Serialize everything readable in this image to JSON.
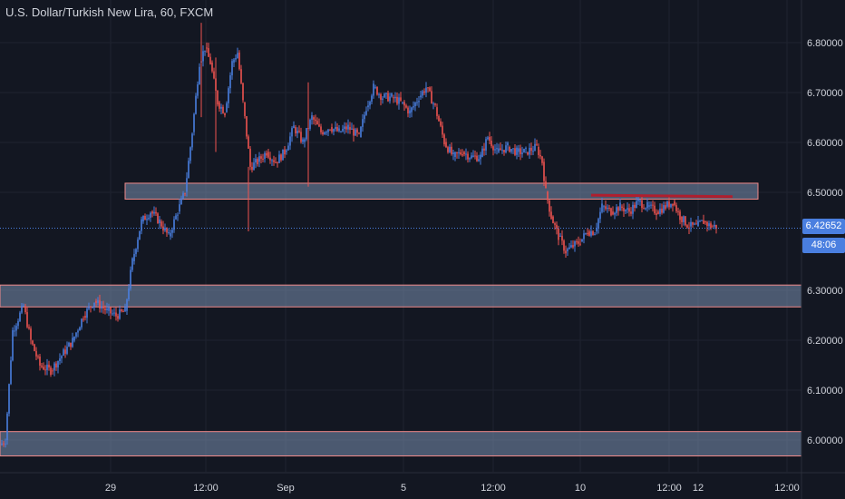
{
  "chart_data": {
    "type": "candlestick",
    "title": "U.S. Dollar/Turkish New Lira, 60, FXCM",
    "y_ticks": [
      "6.80000",
      "6.70000",
      "6.60000",
      "6.50000",
      "6.30000",
      "6.20000",
      "6.10000",
      "6.00000"
    ],
    "y_tick_values": [
      6.8,
      6.7,
      6.6,
      6.5,
      6.3,
      6.2,
      6.1,
      6.0
    ],
    "ylim": [
      5.95,
      6.86
    ],
    "x_ticks": [
      "29",
      "12:00",
      "Sep",
      "5",
      "12:00",
      "10",
      "12:00",
      "12",
      "12:00"
    ],
    "last_price": "6.42652",
    "countdown": "48:06",
    "last_price_value": 6.42652,
    "zones": [
      {
        "name": "resistance-zone-upper",
        "from": 6.485,
        "to": 6.517
      },
      {
        "name": "resistance-zone-middle",
        "from": 6.268,
        "to": 6.312
      },
      {
        "name": "support-zone-lower",
        "from": 5.968,
        "to": 6.017
      }
    ],
    "colors": {
      "up": "#4a7fe0",
      "down": "#ef5350",
      "zone_fill": "#7a8fb0",
      "zone_border": "#f28b8b",
      "trendline": "#b01e2e",
      "background": "#131722",
      "grid": "#1f2330",
      "text": "#d1d4dc"
    },
    "path_points": [
      [
        5.99,
        0
      ],
      [
        6.0,
        6
      ],
      [
        6.22,
        14
      ],
      [
        6.27,
        26
      ],
      [
        6.2,
        34
      ],
      [
        6.15,
        44
      ],
      [
        6.14,
        56
      ],
      [
        6.17,
        68
      ],
      [
        6.2,
        80
      ],
      [
        6.25,
        92
      ],
      [
        6.28,
        104
      ],
      [
        6.26,
        118
      ],
      [
        6.25,
        128
      ],
      [
        6.26,
        138
      ],
      [
        6.36,
        146
      ],
      [
        6.44,
        156
      ],
      [
        6.46,
        166
      ],
      [
        6.44,
        176
      ],
      [
        6.41,
        186
      ],
      [
        6.46,
        196
      ],
      [
        6.5,
        204
      ],
      [
        6.62,
        212
      ],
      [
        6.76,
        220
      ],
      [
        6.79,
        226
      ],
      [
        6.76,
        232
      ],
      [
        6.68,
        240
      ],
      [
        6.66,
        248
      ],
      [
        6.76,
        256
      ],
      [
        6.78,
        262
      ],
      [
        6.68,
        268
      ],
      [
        6.55,
        276
      ],
      [
        6.56,
        284
      ],
      [
        6.58,
        294
      ],
      [
        6.56,
        304
      ],
      [
        6.58,
        314
      ],
      [
        6.63,
        324
      ],
      [
        6.6,
        334
      ],
      [
        6.65,
        344
      ],
      [
        6.62,
        354
      ],
      [
        6.63,
        364
      ],
      [
        6.62,
        374
      ],
      [
        6.63,
        384
      ],
      [
        6.61,
        396
      ],
      [
        6.67,
        404
      ],
      [
        6.71,
        412
      ],
      [
        6.69,
        422
      ],
      [
        6.69,
        432
      ],
      [
        6.68,
        442
      ],
      [
        6.66,
        452
      ],
      [
        6.69,
        462
      ],
      [
        6.71,
        470
      ],
      [
        6.67,
        480
      ],
      [
        6.6,
        490
      ],
      [
        6.57,
        500
      ],
      [
        6.58,
        510
      ],
      [
        6.57,
        520
      ],
      [
        6.57,
        530
      ],
      [
        6.61,
        538
      ],
      [
        6.58,
        548
      ],
      [
        6.59,
        560
      ],
      [
        6.58,
        570
      ],
      [
        6.58,
        580
      ],
      [
        6.59,
        592
      ],
      [
        6.56,
        598
      ],
      [
        6.5,
        602
      ],
      [
        6.45,
        608
      ],
      [
        6.41,
        616
      ],
      [
        6.38,
        624
      ],
      [
        6.39,
        632
      ],
      [
        6.4,
        640
      ],
      [
        6.42,
        648
      ],
      [
        6.42,
        656
      ],
      [
        6.47,
        664
      ],
      [
        6.46,
        674
      ],
      [
        6.47,
        684
      ],
      [
        6.46,
        694
      ],
      [
        6.48,
        704
      ],
      [
        6.47,
        714
      ],
      [
        6.46,
        724
      ],
      [
        6.47,
        734
      ],
      [
        6.48,
        742
      ],
      [
        6.45,
        750
      ],
      [
        6.43,
        760
      ],
      [
        6.43,
        768
      ],
      [
        6.44,
        776
      ],
      [
        6.43,
        784
      ],
      [
        6.43,
        790
      ]
    ],
    "trendline": {
      "y_start": 6.493,
      "y_end": 6.49,
      "x_start": 652,
      "x_end": 808
    }
  }
}
